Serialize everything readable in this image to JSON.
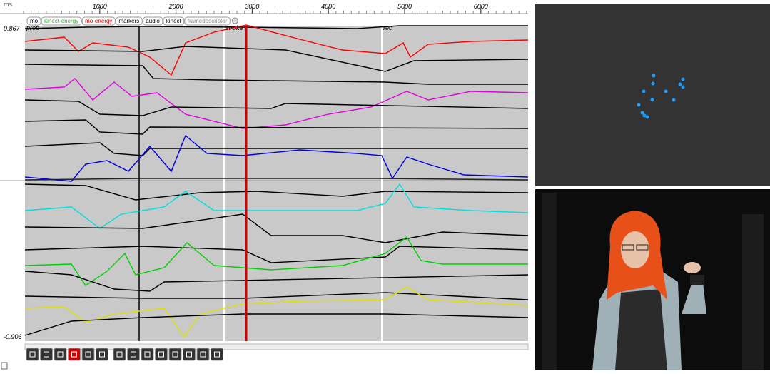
{
  "ruler": {
    "unit": "ms",
    "ticks": [
      1000,
      2000,
      3000,
      4000,
      5000,
      6000
    ]
  },
  "tabs": [
    "mo",
    "kinect-energy",
    "mo-energy",
    "markers",
    "audio",
    "kinect",
    "framedescriptor"
  ],
  "y_axis": {
    "max": "0.867",
    "min": "-0.906"
  },
  "markers": [
    "prep",
    "stroke",
    "rec"
  ]
}
